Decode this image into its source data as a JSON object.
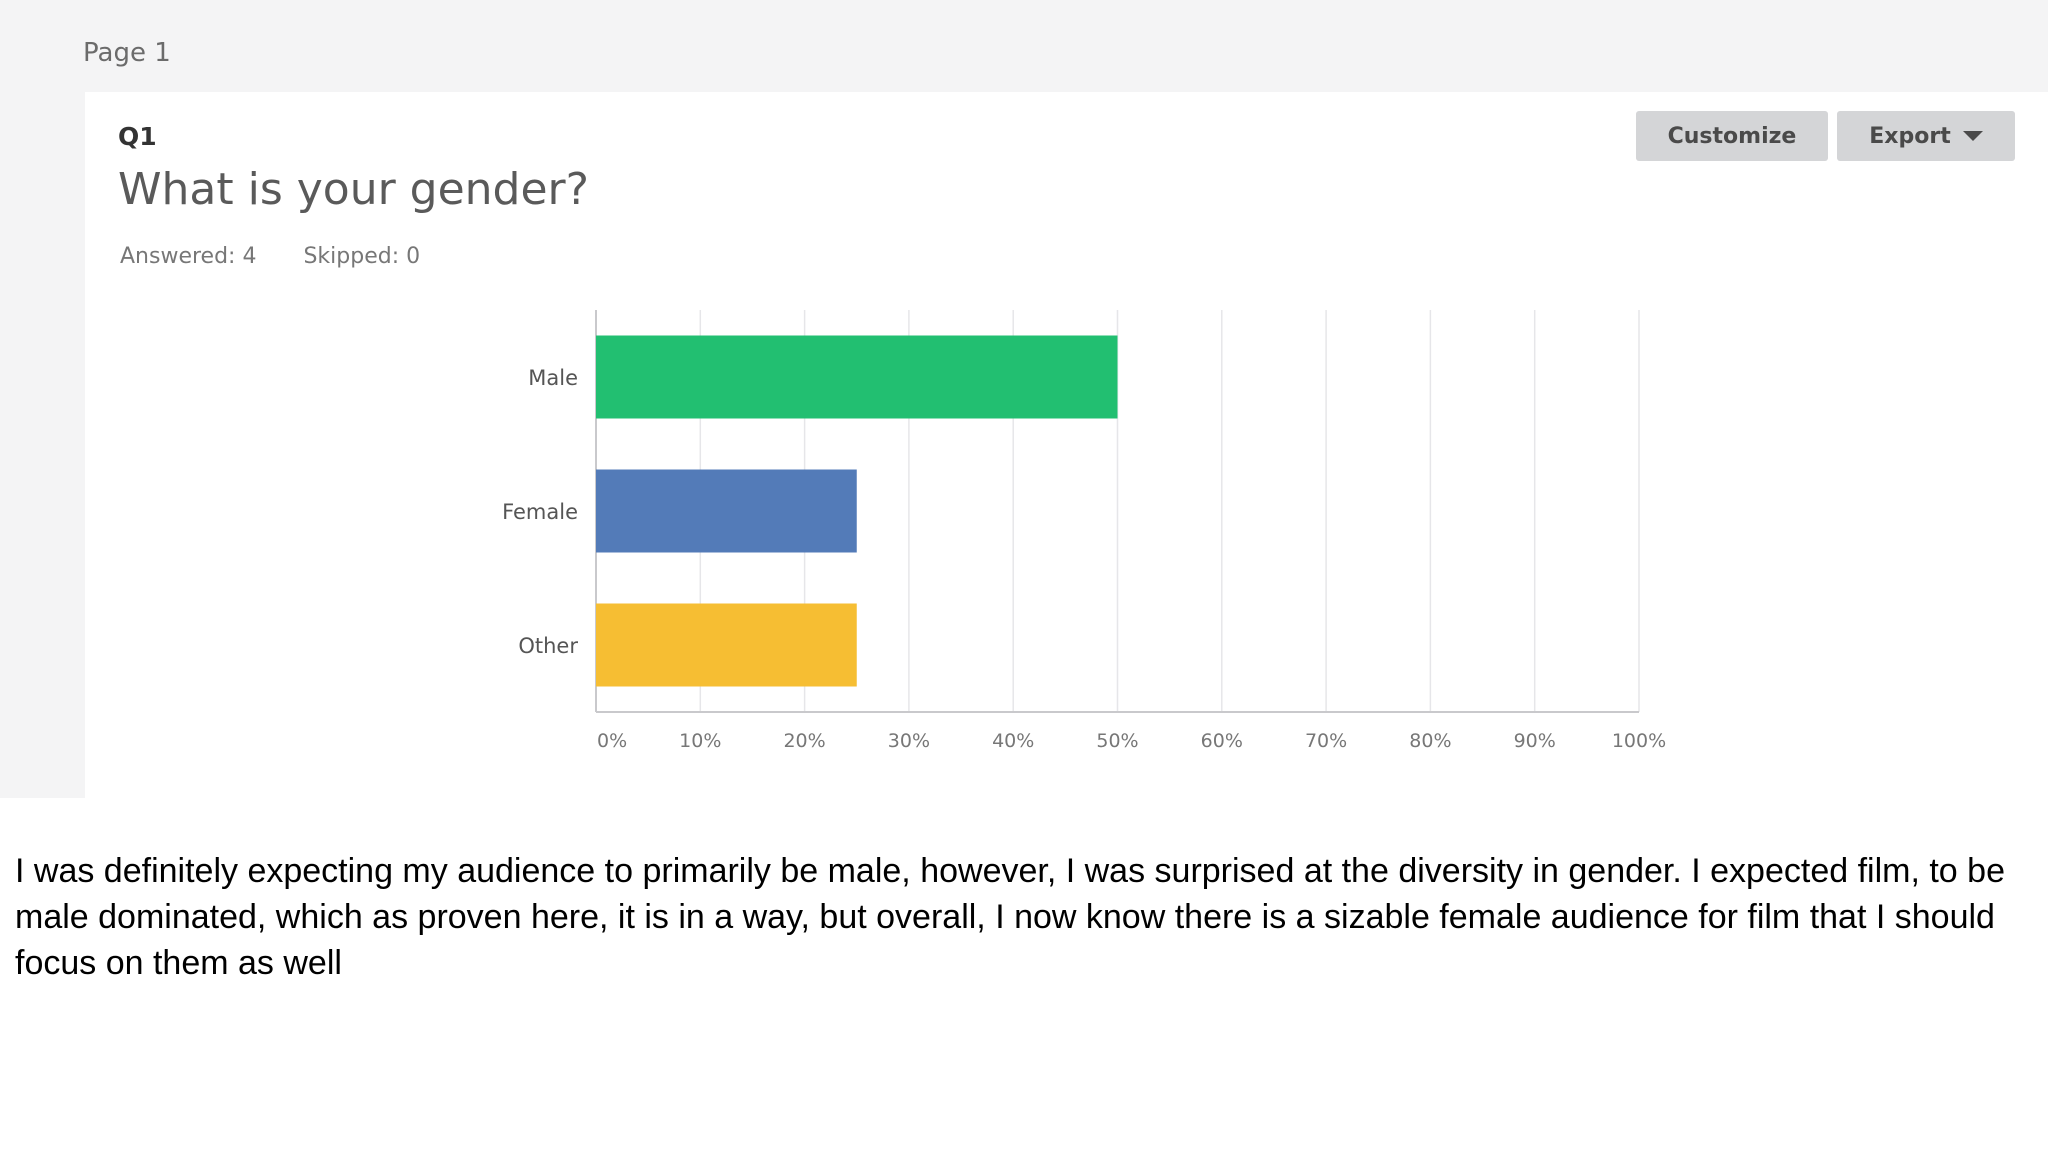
{
  "page": {
    "label": "Page 1"
  },
  "question": {
    "number": "Q1",
    "title": "What is your gender?",
    "answered": "Answered: 4",
    "skipped": "Skipped: 0"
  },
  "toolbar": {
    "customize_label": "Customize",
    "export_label": "Export"
  },
  "chart_data": {
    "type": "bar",
    "orientation": "horizontal",
    "categories": [
      "Male",
      "Female",
      "Other"
    ],
    "values": [
      50,
      25,
      25
    ],
    "colors": [
      "#22bf71",
      "#537bb8",
      "#f6be33"
    ],
    "xlim": [
      0,
      100
    ],
    "xticks": [
      "0%",
      "10%",
      "20%",
      "30%",
      "40%",
      "50%",
      "60%",
      "70%",
      "80%",
      "90%",
      "100%"
    ],
    "title": "What is your gender?",
    "xlabel": "",
    "ylabel": "",
    "grid": true
  },
  "commentary": "I was definitely expecting my audience to primarily be male, however, I was surprised at the diversity in gender. I expected film, to be male dominated, which as proven here, it is in a way, but overall, I now know there is a sizable female audience for film that I should focus on them as well"
}
